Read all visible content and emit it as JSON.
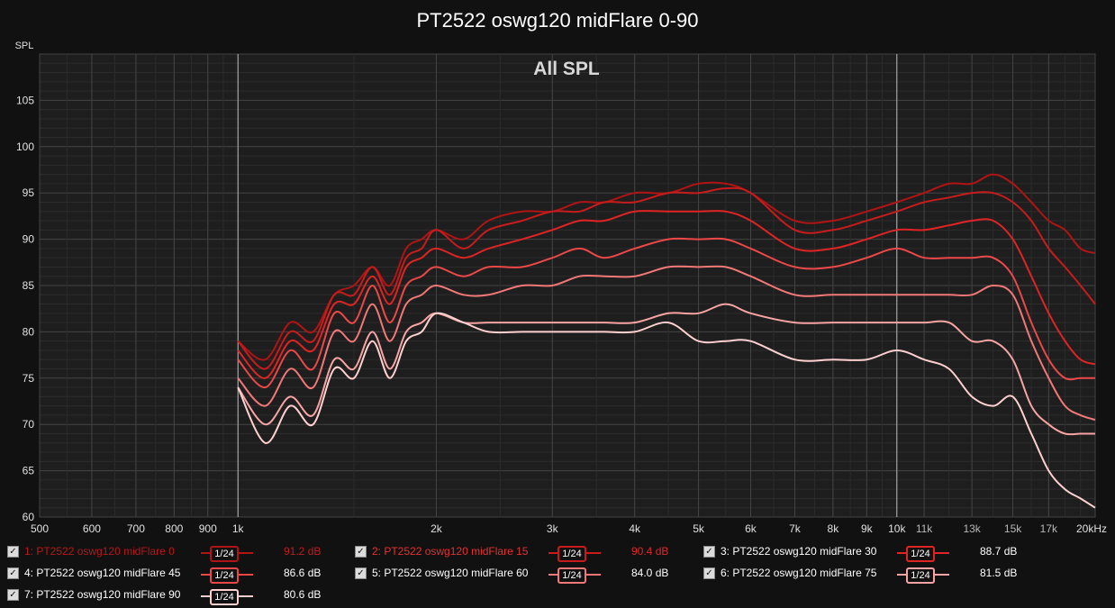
{
  "title": "PT2522 oswg120 midFlare 0-90",
  "colors": {
    "background": "#111111",
    "plot_bg": "#1e1e1e",
    "grid_major": "#444444",
    "grid_minor": "#2c2c2c"
  },
  "chart_data": {
    "type": "line",
    "title": "PT2522 oswg120 midFlare 0-90",
    "subtitle": "All SPL",
    "ylabel": "SPL",
    "xlabel": "",
    "x_scale": "log",
    "xlim": [
      500,
      20000
    ],
    "ylim": [
      60,
      110
    ],
    "grid": true,
    "legend_position": "bottom",
    "x_ticks": [
      {
        "v": 500,
        "label": "500",
        "major": false
      },
      {
        "v": 600,
        "label": "600",
        "major": false
      },
      {
        "v": 700,
        "label": "700",
        "major": false
      },
      {
        "v": 800,
        "label": "800",
        "major": false
      },
      {
        "v": 900,
        "label": "900",
        "major": false
      },
      {
        "v": 1000,
        "label": "1k",
        "major": true
      },
      {
        "v": 2000,
        "label": "2k",
        "major": false
      },
      {
        "v": 3000,
        "label": "3k",
        "major": false
      },
      {
        "v": 4000,
        "label": "4k",
        "major": false
      },
      {
        "v": 5000,
        "label": "5k",
        "major": false
      },
      {
        "v": 6000,
        "label": "6k",
        "major": false
      },
      {
        "v": 7000,
        "label": "7k",
        "major": false
      },
      {
        "v": 8000,
        "label": "8k",
        "major": false
      },
      {
        "v": 9000,
        "label": "9k",
        "major": false
      },
      {
        "v": 10000,
        "label": "10k",
        "major": true
      },
      {
        "v": 11000,
        "label": "11k",
        "major": false
      },
      {
        "v": 13000,
        "label": "13k",
        "major": false
      },
      {
        "v": 15000,
        "label": "15k",
        "major": false
      },
      {
        "v": 17000,
        "label": "17k",
        "major": false
      },
      {
        "v": 20000,
        "label": "20kHz",
        "major": false
      }
    ],
    "y_ticks": [
      60,
      65,
      70,
      75,
      80,
      85,
      90,
      95,
      100,
      105
    ],
    "x": [
      1000,
      1100,
      1200,
      1300,
      1400,
      1500,
      1600,
      1700,
      1800,
      1900,
      2000,
      2200,
      2400,
      2700,
      3000,
      3300,
      3600,
      4000,
      4500,
      5000,
      5500,
      6000,
      7000,
      8000,
      9000,
      10000,
      11000,
      12000,
      13000,
      14000,
      15000,
      16000,
      17000,
      18000,
      19000,
      20000
    ],
    "series": [
      {
        "name": "1: PT2522 oswg120 midFlare 0",
        "smoothing": "1/24",
        "level": "91.2 dB",
        "color": "#b01414",
        "values": [
          79,
          77,
          81,
          80,
          84,
          85,
          87,
          85,
          89,
          90,
          91,
          90,
          92,
          93,
          93,
          94,
          94,
          95,
          95,
          96,
          96,
          95,
          92,
          92,
          93,
          94,
          95,
          96,
          96,
          97,
          96,
          94,
          92,
          91,
          89,
          88.5
        ]
      },
      {
        "name": "2: PT2522 oswg120 midFlare 15",
        "smoothing": "1/24",
        "level": "90.4 dB",
        "color": "#c81c1c",
        "values": [
          79,
          76,
          80,
          79,
          84,
          84,
          87,
          84,
          88,
          89,
          91,
          89,
          91,
          92,
          93,
          93,
          94,
          94,
          95,
          95,
          95.5,
          95,
          91,
          91,
          92,
          93,
          94,
          94.5,
          95,
          95,
          94,
          92,
          89,
          87,
          85,
          83
        ]
      },
      {
        "name": "3: PT2522 oswg120 midFlare 30",
        "smoothing": "1/24",
        "level": "88.7 dB",
        "color": "#e02424",
        "values": [
          78,
          75,
          79,
          78,
          83,
          83,
          86,
          83,
          87,
          88,
          89,
          88,
          89,
          90,
          91,
          92,
          92,
          93,
          93,
          93,
          93,
          92,
          89,
          89,
          90,
          91,
          91,
          91.5,
          92,
          92,
          90,
          86,
          82,
          79,
          77,
          76.5
        ]
      },
      {
        "name": "4: PT2522 oswg120 midFlare 45",
        "smoothing": "1/24",
        "level": "86.6 dB",
        "color": "#ec4848",
        "values": [
          77,
          74,
          78,
          76,
          82,
          81,
          85,
          81,
          85,
          86,
          87,
          86,
          87,
          87,
          88,
          89,
          88,
          89,
          90,
          90,
          90,
          89,
          87,
          87,
          88,
          89,
          88,
          88,
          88,
          88,
          86,
          81,
          77,
          75,
          75,
          75
        ]
      },
      {
        "name": "5: PT2522 oswg120 midFlare 60",
        "smoothing": "1/24",
        "level": "84.0 dB",
        "color": "#f27878",
        "values": [
          75,
          72,
          76,
          74,
          80,
          79,
          83,
          79,
          83,
          84,
          85,
          84,
          84,
          85,
          85,
          86,
          86,
          86,
          87,
          87,
          87,
          86,
          84,
          84,
          84,
          84,
          84,
          84,
          84,
          85,
          84,
          79,
          75,
          72,
          71,
          70.5
        ]
      },
      {
        "name": "6: PT2522 oswg120 midFlare 75",
        "smoothing": "1/24",
        "level": "81.5 dB",
        "color": "#f8a4a4",
        "values": [
          74,
          70,
          73,
          71,
          77,
          76,
          80,
          76,
          80,
          81,
          82,
          81,
          81,
          81,
          81,
          81,
          81,
          81,
          82,
          82,
          83,
          82,
          81,
          81,
          81,
          81,
          81,
          81,
          79,
          79,
          77,
          72,
          70,
          69,
          69,
          69
        ]
      },
      {
        "name": "7: PT2522 oswg120 midFlare 90",
        "smoothing": "1/24",
        "level": "80.6 dB",
        "color": "#ffd0d0",
        "values": [
          74,
          68,
          72,
          70,
          76,
          75,
          79,
          75,
          79,
          80,
          82,
          81,
          80,
          80,
          80,
          80,
          80,
          80,
          81,
          79,
          79,
          79,
          77,
          77,
          77,
          78,
          77,
          76,
          73,
          72,
          73,
          69,
          65,
          63,
          62,
          61
        ]
      }
    ]
  }
}
